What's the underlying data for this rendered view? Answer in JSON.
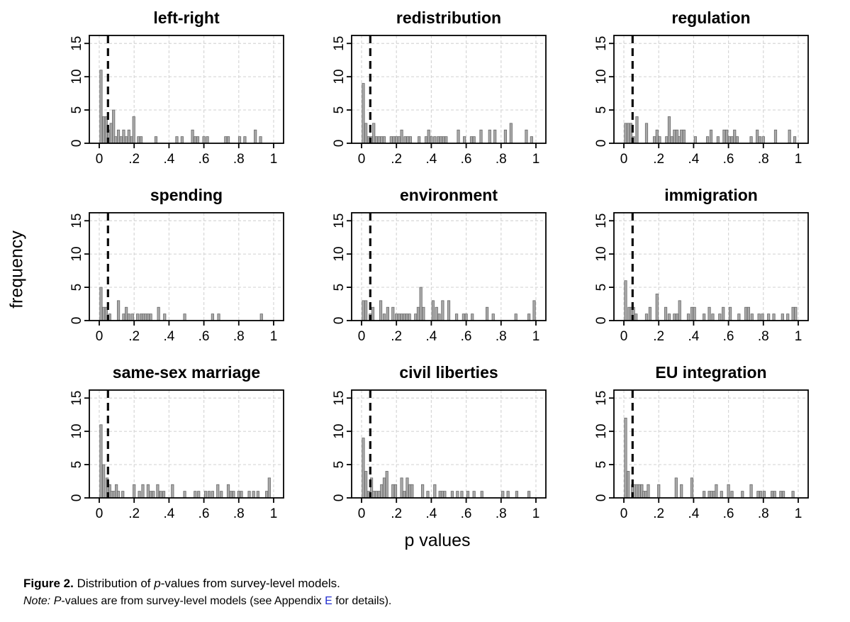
{
  "figure": {
    "ylabel": "frequency",
    "xlabel": "p values"
  },
  "caption": {
    "figure_label": "Figure 2.",
    "pre": " Distribution of ",
    "italic1": "p",
    "post": "-values from survey-level models."
  },
  "note": {
    "label": "Note:",
    "pre": " ",
    "italic1": "P",
    "mid": "-values are from survey-level models (see Appendix ",
    "link": "E",
    "post": " for details)."
  },
  "colors": {
    "bar_fill": "#a9a9a9",
    "bar_stroke": "#696969",
    "grid": "#d6d6d6",
    "axis": "#000000",
    "ref_line": "#0a0a0a",
    "link": "#2430cf"
  },
  "chart_data": {
    "type": "bar",
    "subtype": "histogram-grid-3x3",
    "xlabel": "p values",
    "ylabel": "frequency",
    "xlim": [
      -0.057,
      1.057
    ],
    "ylim": [
      0,
      16.2
    ],
    "x_ticks": [
      "0",
      ".2",
      ".4",
      ".6",
      ".8",
      "1"
    ],
    "x_tick_values": [
      0,
      0.2,
      0.4,
      0.6,
      0.8,
      1
    ],
    "y_ticks": [
      "0",
      "5",
      "10",
      "15"
    ],
    "y_tick_values": [
      0,
      5,
      10,
      15
    ],
    "grid": true,
    "ref_line_x": 0.05,
    "bin_width": 0.013,
    "panels": [
      {
        "title": "left-right",
        "bars": [
          [
            0.01,
            11
          ],
          [
            0.025,
            4
          ],
          [
            0.04,
            4
          ],
          [
            0.055,
            2
          ],
          [
            0.068,
            3
          ],
          [
            0.082,
            5
          ],
          [
            0.095,
            1
          ],
          [
            0.11,
            2
          ],
          [
            0.125,
            1
          ],
          [
            0.14,
            2
          ],
          [
            0.155,
            1
          ],
          [
            0.17,
            2
          ],
          [
            0.185,
            1
          ],
          [
            0.198,
            4
          ],
          [
            0.225,
            1
          ],
          [
            0.24,
            1
          ],
          [
            0.325,
            1
          ],
          [
            0.445,
            1
          ],
          [
            0.475,
            1
          ],
          [
            0.535,
            2
          ],
          [
            0.55,
            1
          ],
          [
            0.565,
            1
          ],
          [
            0.6,
            1
          ],
          [
            0.62,
            1
          ],
          [
            0.725,
            1
          ],
          [
            0.74,
            1
          ],
          [
            0.805,
            1
          ],
          [
            0.835,
            1
          ],
          [
            0.895,
            2
          ],
          [
            0.925,
            1
          ]
        ]
      },
      {
        "title": "redistribution",
        "bars": [
          [
            0.01,
            9
          ],
          [
            0.025,
            3
          ],
          [
            0.04,
            1
          ],
          [
            0.055,
            1
          ],
          [
            0.07,
            3
          ],
          [
            0.085,
            1
          ],
          [
            0.1,
            1
          ],
          [
            0.115,
            1
          ],
          [
            0.13,
            1
          ],
          [
            0.17,
            1
          ],
          [
            0.185,
            1
          ],
          [
            0.2,
            1
          ],
          [
            0.215,
            1
          ],
          [
            0.23,
            2
          ],
          [
            0.25,
            1
          ],
          [
            0.265,
            1
          ],
          [
            0.28,
            1
          ],
          [
            0.33,
            1
          ],
          [
            0.37,
            1
          ],
          [
            0.385,
            2
          ],
          [
            0.4,
            1
          ],
          [
            0.42,
            1
          ],
          [
            0.44,
            1
          ],
          [
            0.455,
            1
          ],
          [
            0.47,
            1
          ],
          [
            0.485,
            1
          ],
          [
            0.555,
            2
          ],
          [
            0.59,
            1
          ],
          [
            0.63,
            1
          ],
          [
            0.645,
            1
          ],
          [
            0.685,
            2
          ],
          [
            0.735,
            2
          ],
          [
            0.765,
            2
          ],
          [
            0.825,
            2
          ],
          [
            0.857,
            3
          ],
          [
            0.945,
            2
          ],
          [
            0.975,
            1
          ]
        ]
      },
      {
        "title": "regulation",
        "bars": [
          [
            0.01,
            3
          ],
          [
            0.025,
            3
          ],
          [
            0.04,
            3
          ],
          [
            0.055,
            1
          ],
          [
            0.075,
            4
          ],
          [
            0.13,
            3
          ],
          [
            0.175,
            1
          ],
          [
            0.19,
            2
          ],
          [
            0.205,
            1
          ],
          [
            0.245,
            1
          ],
          [
            0.26,
            4
          ],
          [
            0.275,
            1
          ],
          [
            0.29,
            2
          ],
          [
            0.305,
            2
          ],
          [
            0.318,
            1
          ],
          [
            0.33,
            2
          ],
          [
            0.345,
            2
          ],
          [
            0.41,
            1
          ],
          [
            0.48,
            1
          ],
          [
            0.5,
            2
          ],
          [
            0.54,
            1
          ],
          [
            0.575,
            2
          ],
          [
            0.59,
            2
          ],
          [
            0.605,
            1
          ],
          [
            0.62,
            1
          ],
          [
            0.635,
            2
          ],
          [
            0.65,
            1
          ],
          [
            0.73,
            1
          ],
          [
            0.765,
            2
          ],
          [
            0.78,
            1
          ],
          [
            0.8,
            1
          ],
          [
            0.87,
            2
          ],
          [
            0.95,
            2
          ],
          [
            0.98,
            1
          ]
        ]
      },
      {
        "title": "spending",
        "bars": [
          [
            0.01,
            5
          ],
          [
            0.025,
            2
          ],
          [
            0.04,
            2
          ],
          [
            0.06,
            1
          ],
          [
            0.11,
            3
          ],
          [
            0.14,
            1
          ],
          [
            0.155,
            2
          ],
          [
            0.17,
            1
          ],
          [
            0.19,
            1
          ],
          [
            0.22,
            1
          ],
          [
            0.24,
            1
          ],
          [
            0.253,
            1
          ],
          [
            0.266,
            1
          ],
          [
            0.28,
            1
          ],
          [
            0.295,
            1
          ],
          [
            0.34,
            2
          ],
          [
            0.375,
            1
          ],
          [
            0.49,
            1
          ],
          [
            0.65,
            1
          ],
          [
            0.685,
            1
          ],
          [
            0.93,
            1
          ]
        ]
      },
      {
        "title": "environment",
        "bars": [
          [
            0.01,
            3
          ],
          [
            0.025,
            3
          ],
          [
            0.05,
            1
          ],
          [
            0.065,
            2
          ],
          [
            0.11,
            3
          ],
          [
            0.13,
            1
          ],
          [
            0.15,
            2
          ],
          [
            0.18,
            2
          ],
          [
            0.2,
            1
          ],
          [
            0.215,
            1
          ],
          [
            0.23,
            1
          ],
          [
            0.245,
            1
          ],
          [
            0.26,
            1
          ],
          [
            0.275,
            1
          ],
          [
            0.31,
            1
          ],
          [
            0.325,
            2
          ],
          [
            0.34,
            5
          ],
          [
            0.355,
            2
          ],
          [
            0.41,
            3
          ],
          [
            0.43,
            2
          ],
          [
            0.445,
            1
          ],
          [
            0.465,
            3
          ],
          [
            0.5,
            3
          ],
          [
            0.545,
            1
          ],
          [
            0.585,
            1
          ],
          [
            0.6,
            1
          ],
          [
            0.635,
            1
          ],
          [
            0.72,
            2
          ],
          [
            0.755,
            1
          ],
          [
            0.885,
            1
          ],
          [
            0.96,
            1
          ],
          [
            0.99,
            3
          ]
        ]
      },
      {
        "title": "immigration",
        "bars": [
          [
            0.01,
            6
          ],
          [
            0.03,
            2
          ],
          [
            0.043,
            2
          ],
          [
            0.055,
            2
          ],
          [
            0.07,
            1
          ],
          [
            0.13,
            1
          ],
          [
            0.15,
            2
          ],
          [
            0.19,
            4
          ],
          [
            0.24,
            2
          ],
          [
            0.26,
            1
          ],
          [
            0.29,
            1
          ],
          [
            0.305,
            1
          ],
          [
            0.32,
            3
          ],
          [
            0.37,
            1
          ],
          [
            0.39,
            2
          ],
          [
            0.405,
            2
          ],
          [
            0.46,
            1
          ],
          [
            0.49,
            2
          ],
          [
            0.51,
            1
          ],
          [
            0.55,
            1
          ],
          [
            0.57,
            2
          ],
          [
            0.61,
            2
          ],
          [
            0.66,
            1
          ],
          [
            0.7,
            2
          ],
          [
            0.715,
            2
          ],
          [
            0.735,
            1
          ],
          [
            0.775,
            1
          ],
          [
            0.795,
            1
          ],
          [
            0.83,
            1
          ],
          [
            0.86,
            1
          ],
          [
            0.91,
            1
          ],
          [
            0.94,
            1
          ],
          [
            0.97,
            2
          ],
          [
            0.985,
            2
          ]
        ]
      },
      {
        "title": "same-sex marriage",
        "bars": [
          [
            0.01,
            11
          ],
          [
            0.025,
            5
          ],
          [
            0.045,
            3
          ],
          [
            0.06,
            2
          ],
          [
            0.072,
            1
          ],
          [
            0.085,
            1
          ],
          [
            0.098,
            2
          ],
          [
            0.11,
            1
          ],
          [
            0.135,
            1
          ],
          [
            0.2,
            2
          ],
          [
            0.23,
            1
          ],
          [
            0.25,
            2
          ],
          [
            0.28,
            2
          ],
          [
            0.295,
            1
          ],
          [
            0.31,
            1
          ],
          [
            0.335,
            2
          ],
          [
            0.352,
            1
          ],
          [
            0.37,
            1
          ],
          [
            0.42,
            2
          ],
          [
            0.49,
            1
          ],
          [
            0.55,
            1
          ],
          [
            0.57,
            1
          ],
          [
            0.61,
            1
          ],
          [
            0.63,
            1
          ],
          [
            0.65,
            1
          ],
          [
            0.68,
            2
          ],
          [
            0.7,
            1
          ],
          [
            0.74,
            2
          ],
          [
            0.755,
            1
          ],
          [
            0.77,
            1
          ],
          [
            0.8,
            1
          ],
          [
            0.815,
            1
          ],
          [
            0.86,
            1
          ],
          [
            0.885,
            1
          ],
          [
            0.91,
            1
          ],
          [
            0.96,
            1
          ],
          [
            0.975,
            3
          ]
        ]
      },
      {
        "title": "civil liberties",
        "bars": [
          [
            0.01,
            9
          ],
          [
            0.025,
            4
          ],
          [
            0.04,
            1
          ],
          [
            0.057,
            3
          ],
          [
            0.07,
            1
          ],
          [
            0.085,
            1
          ],
          [
            0.1,
            1
          ],
          [
            0.115,
            2
          ],
          [
            0.13,
            3
          ],
          [
            0.145,
            4
          ],
          [
            0.18,
            2
          ],
          [
            0.195,
            2
          ],
          [
            0.23,
            3
          ],
          [
            0.245,
            1
          ],
          [
            0.262,
            3
          ],
          [
            0.277,
            2
          ],
          [
            0.29,
            2
          ],
          [
            0.35,
            2
          ],
          [
            0.38,
            1
          ],
          [
            0.42,
            2
          ],
          [
            0.45,
            1
          ],
          [
            0.463,
            1
          ],
          [
            0.477,
            1
          ],
          [
            0.52,
            1
          ],
          [
            0.55,
            1
          ],
          [
            0.575,
            1
          ],
          [
            0.61,
            1
          ],
          [
            0.645,
            1
          ],
          [
            0.69,
            1
          ],
          [
            0.81,
            1
          ],
          [
            0.84,
            1
          ],
          [
            0.89,
            1
          ],
          [
            0.96,
            1
          ]
        ]
      },
      {
        "title": "EU integration",
        "bars": [
          [
            0.01,
            12
          ],
          [
            0.025,
            4
          ],
          [
            0.05,
            2
          ],
          [
            0.062,
            2
          ],
          [
            0.075,
            2
          ],
          [
            0.088,
            2
          ],
          [
            0.103,
            2
          ],
          [
            0.115,
            1
          ],
          [
            0.127,
            1
          ],
          [
            0.14,
            2
          ],
          [
            0.2,
            2
          ],
          [
            0.3,
            3
          ],
          [
            0.33,
            2
          ],
          [
            0.39,
            3
          ],
          [
            0.46,
            1
          ],
          [
            0.49,
            1
          ],
          [
            0.503,
            1
          ],
          [
            0.517,
            1
          ],
          [
            0.53,
            2
          ],
          [
            0.56,
            1
          ],
          [
            0.6,
            2
          ],
          [
            0.62,
            1
          ],
          [
            0.68,
            1
          ],
          [
            0.73,
            2
          ],
          [
            0.77,
            1
          ],
          [
            0.785,
            1
          ],
          [
            0.805,
            1
          ],
          [
            0.85,
            1
          ],
          [
            0.865,
            1
          ],
          [
            0.9,
            1
          ],
          [
            0.915,
            1
          ],
          [
            0.97,
            1
          ]
        ]
      }
    ]
  }
}
